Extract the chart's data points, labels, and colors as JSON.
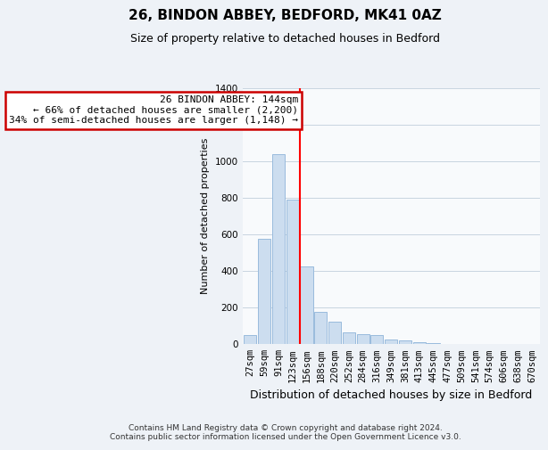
{
  "title": "26, BINDON ABBEY, BEDFORD, MK41 0AZ",
  "subtitle": "Size of property relative to detached houses in Bedford",
  "xlabel": "Distribution of detached houses by size in Bedford",
  "ylabel": "Number of detached properties",
  "categories": [
    "27sqm",
    "59sqm",
    "91sqm",
    "123sqm",
    "156sqm",
    "188sqm",
    "220sqm",
    "252sqm",
    "284sqm",
    "316sqm",
    "349sqm",
    "381sqm",
    "413sqm",
    "445sqm",
    "477sqm",
    "509sqm",
    "541sqm",
    "574sqm",
    "606sqm",
    "638sqm",
    "670sqm"
  ],
  "values": [
    50,
    575,
    1040,
    790,
    425,
    178,
    125,
    65,
    55,
    50,
    25,
    20,
    10,
    5,
    3,
    0,
    0,
    0,
    0,
    0,
    0
  ],
  "bar_color": "#ccddef",
  "bar_edge_color": "#99bbdd",
  "redline_x": 3.5,
  "annotation_line1": "26 BINDON ABBEY: 144sqm",
  "annotation_line2": "← 66% of detached houses are smaller (2,200)",
  "annotation_line3": "34% of semi-detached houses are larger (1,148) →",
  "annotation_box_facecolor": "#ffffff",
  "annotation_box_edgecolor": "#cc0000",
  "ylim": [
    0,
    1400
  ],
  "yticks": [
    0,
    200,
    400,
    600,
    800,
    1000,
    1200,
    1400
  ],
  "footnote1": "Contains HM Land Registry data © Crown copyright and database right 2024.",
  "footnote2": "Contains public sector information licensed under the Open Government Licence v3.0.",
  "bg_color": "#eef2f7",
  "plot_bg_color": "#f8fafc",
  "grid_color": "#c8d4e0",
  "title_fontsize": 11,
  "subtitle_fontsize": 9,
  "ylabel_fontsize": 8,
  "xlabel_fontsize": 9,
  "tick_fontsize": 7.5,
  "annotation_fontsize": 8,
  "footnote_fontsize": 6.5
}
